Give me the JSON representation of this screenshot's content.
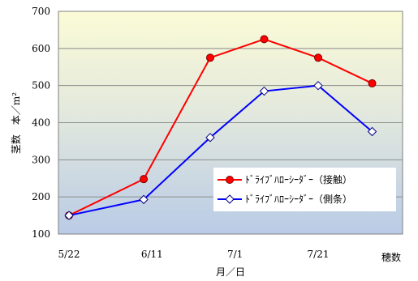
{
  "chart_data": {
    "type": "line",
    "xlabel": "月／日",
    "ylabel": "茎数　本／m²",
    "extra_label": "穂数",
    "ylim": [
      100,
      700
    ],
    "yticks": [
      100,
      200,
      300,
      400,
      500,
      600,
      700
    ],
    "x_tick_labels": [
      {
        "label": "5/22",
        "x": 0
      },
      {
        "label": "6/11",
        "x": 20
      },
      {
        "label": "7/1",
        "x": 40
      },
      {
        "label": "7/21",
        "x": 60
      }
    ],
    "xlim": [
      0,
      75
    ],
    "grid": true,
    "legend_position": "lower-right inside plot",
    "series": [
      {
        "name": "ﾄﾞﾗｲﾌﾞﾊﾛｰｼｰﾀﾞｰ（接触）",
        "color": "#ff0000",
        "marker": "filled-circle",
        "x": [
          0,
          18,
          34,
          47,
          60,
          73
        ],
        "values": [
          150,
          248,
          575,
          625,
          575,
          506
        ]
      },
      {
        "name": "ﾄﾞﾗｲﾌﾞﾊﾛｰｼｰﾀﾞｰ（側条）",
        "color": "#0000ff",
        "marker": "hollow-diamond",
        "x": [
          0,
          18,
          34,
          47,
          60,
          73
        ],
        "values": [
          150,
          193,
          360,
          485,
          500,
          376
        ]
      }
    ]
  }
}
